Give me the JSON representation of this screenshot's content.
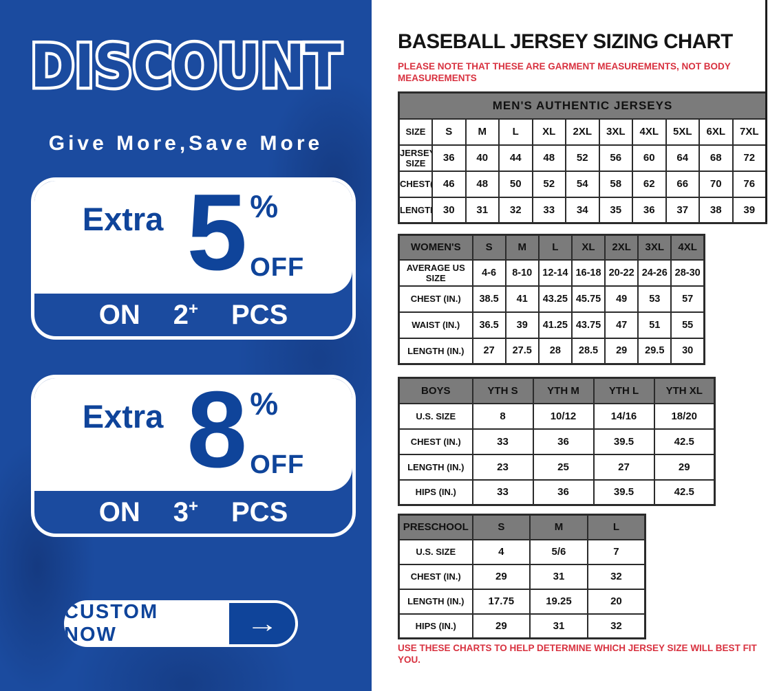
{
  "colors": {
    "brand_blue": "#1b4b9f",
    "deep_blue_text": "#0f449a",
    "table_header_gray": "#7b7b7b",
    "alert_red": "#d8313f"
  },
  "left_panel": {
    "title": "DISCOUNT",
    "tagline": "Give More,Save More",
    "offers": [
      {
        "extra": "Extra",
        "value": "5",
        "percent": "%",
        "off": "OFF",
        "on_word": "ON",
        "qty": "2",
        "plus": "+",
        "pcs": "PCS"
      },
      {
        "extra": "Extra",
        "value": "8",
        "percent": "%",
        "off": "OFF",
        "on_word": "ON",
        "qty": "3",
        "plus": "+",
        "pcs": "PCS"
      }
    ],
    "cta": {
      "label": "CUSTOM NOW",
      "arrow": "→"
    }
  },
  "right_panel": {
    "title": "BASEBALL JERSEY SIZING CHART",
    "note_top": "PLEASE NOTE THAT THESE ARE GARMENT MEASUREMENTS, NOT BODY MEASUREMENTS",
    "note_bottom": "USE THESE CHARTS TO HELP DETERMINE WHICH JERSEY SIZE WILL BEST FIT YOU.",
    "tables": [
      {
        "css": "mens",
        "banner": "MEN'S AUTHENTIC JERSEYS",
        "gray_header": false,
        "header": {
          "label": "SIZE",
          "cols": [
            "S",
            "M",
            "L",
            "XL",
            "2XL",
            "3XL",
            "4XL",
            "5XL",
            "6XL",
            "7XL"
          ]
        },
        "rows": [
          {
            "label": "JERSEY SIZE",
            "values": [
              "36",
              "40",
              "44",
              "48",
              "52",
              "56",
              "60",
              "64",
              "68",
              "72"
            ]
          },
          {
            "label": "CHEST(IN.)",
            "values": [
              "46",
              "48",
              "50",
              "52",
              "54",
              "58",
              "62",
              "66",
              "70",
              "76"
            ]
          },
          {
            "label": "LENGTH(IN.)",
            "values": [
              "30",
              "31",
              "32",
              "33",
              "34",
              "35",
              "36",
              "37",
              "38",
              "39"
            ]
          }
        ]
      },
      {
        "css": "womens",
        "gray_header": true,
        "header": {
          "label": "WOMEN'S",
          "cols": [
            "S",
            "M",
            "L",
            "XL",
            "2XL",
            "3XL",
            "4XL"
          ]
        },
        "rows": [
          {
            "label": "AVERAGE US SIZE",
            "values": [
              "4-6",
              "8-10",
              "12-14",
              "16-18",
              "20-22",
              "24-26",
              "28-30"
            ]
          },
          {
            "label": "CHEST (IN.)",
            "values": [
              "38.5",
              "41",
              "43.25",
              "45.75",
              "49",
              "53",
              "57"
            ]
          },
          {
            "label": "WAIST (IN.)",
            "values": [
              "36.5",
              "39",
              "41.25",
              "43.75",
              "47",
              "51",
              "55"
            ]
          },
          {
            "label": "LENGTH (IN.)",
            "values": [
              "27",
              "27.5",
              "28",
              "28.5",
              "29",
              "29.5",
              "30"
            ]
          }
        ]
      },
      {
        "css": "boys",
        "gray_header": true,
        "header": {
          "label": "BOYS",
          "cols": [
            "YTH S",
            "YTH M",
            "YTH L",
            "YTH XL"
          ]
        },
        "rows": [
          {
            "label": "U.S. SIZE",
            "values": [
              "8",
              "10/12",
              "14/16",
              "18/20"
            ]
          },
          {
            "label": "CHEST (IN.)",
            "values": [
              "33",
              "36",
              "39.5",
              "42.5"
            ]
          },
          {
            "label": "LENGTH (IN.)",
            "values": [
              "23",
              "25",
              "27",
              "29"
            ]
          },
          {
            "label": "HIPS (IN.)",
            "values": [
              "33",
              "36",
              "39.5",
              "42.5"
            ]
          }
        ]
      },
      {
        "css": "preschool",
        "gray_header": true,
        "header": {
          "label": "PRESCHOOL",
          "cols": [
            "S",
            "M",
            "L"
          ]
        },
        "rows": [
          {
            "label": "U.S. SIZE",
            "values": [
              "4",
              "5/6",
              "7"
            ]
          },
          {
            "label": "CHEST (IN.)",
            "values": [
              "29",
              "31",
              "32"
            ]
          },
          {
            "label": "LENGTH (IN.)",
            "values": [
              "17.75",
              "19.25",
              "20"
            ]
          },
          {
            "label": "HIPS (IN.)",
            "values": [
              "29",
              "31",
              "32"
            ]
          }
        ]
      }
    ]
  }
}
